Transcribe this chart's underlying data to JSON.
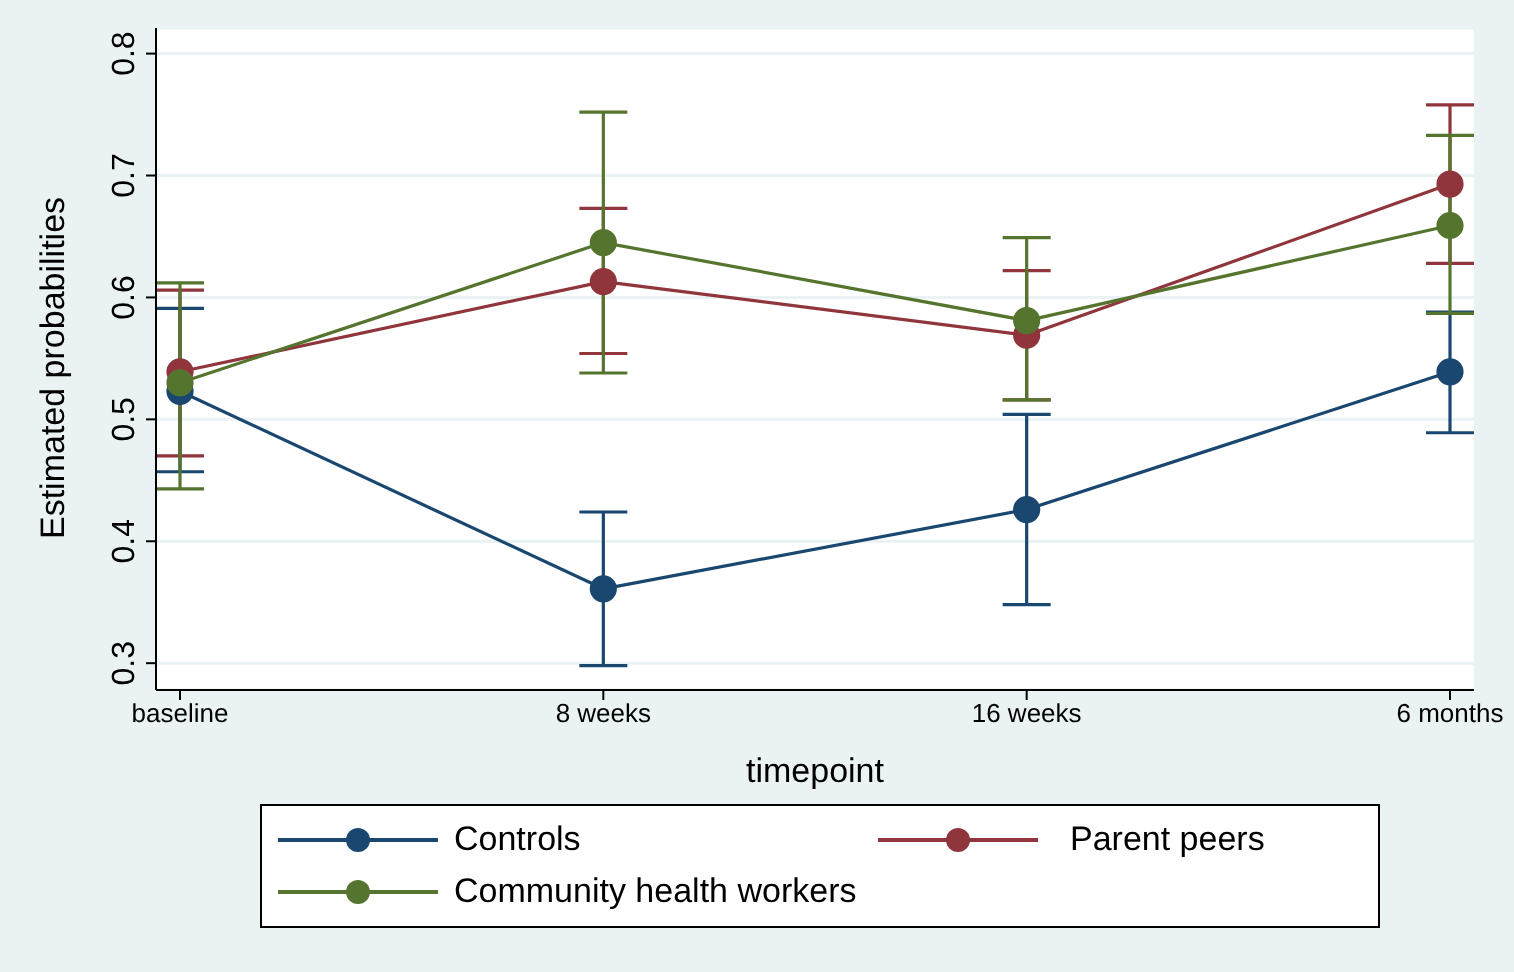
{
  "chart_data": {
    "type": "line",
    "xlabel": "timepoint",
    "ylabel": "Estimated probabilities",
    "categories": [
      "baseline",
      "8 weeks",
      "16 weeks",
      "6 months"
    ],
    "series": [
      {
        "name": "Controls",
        "color": "#1a476f",
        "values": [
          0.523,
          0.361,
          0.426,
          0.539
        ],
        "errors": [
          [
            0.457,
            0.591
          ],
          [
            0.298,
            0.424
          ],
          [
            0.348,
            0.504
          ],
          [
            0.489,
            0.588
          ]
        ]
      },
      {
        "name": "Parent peers",
        "color": "#90353b",
        "values": [
          0.539,
          0.613,
          0.569,
          0.693
        ],
        "errors": [
          [
            0.47,
            0.606
          ],
          [
            0.554,
            0.673
          ],
          [
            0.516,
            0.622
          ],
          [
            0.628,
            0.758
          ]
        ]
      },
      {
        "name": "Community health workers",
        "color": "#55752f",
        "values": [
          0.53,
          0.645,
          0.581,
          0.659
        ],
        "errors": [
          [
            0.443,
            0.612
          ],
          [
            0.538,
            0.752
          ],
          [
            0.516,
            0.649
          ],
          [
            0.587,
            0.733
          ]
        ]
      }
    ],
    "ylim": [
      0.278,
      0.821
    ],
    "yticks": [
      0.3,
      0.4,
      0.5,
      0.6,
      0.7,
      0.8
    ],
    "grid": "y",
    "legend": "bottom",
    "marker": "circle",
    "line_style": "solid"
  }
}
